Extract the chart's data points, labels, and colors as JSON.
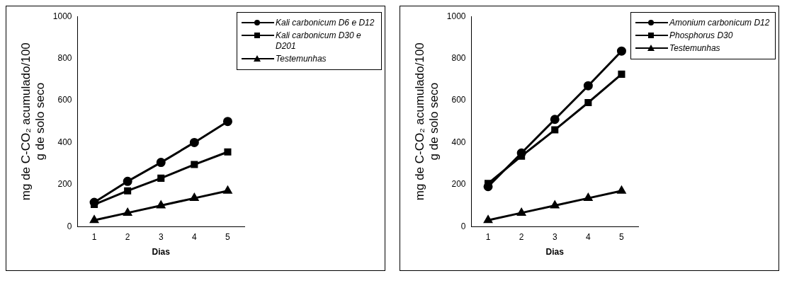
{
  "chart_data": [
    {
      "type": "line",
      "xlabel": "Dias",
      "ylabel": "mg de C-CO₂ acumulado/100 g de solo seco",
      "categories": [
        "1",
        "2",
        "3",
        "4",
        "5"
      ],
      "ylim": [
        0,
        1000
      ],
      "yticks": [
        0,
        200,
        400,
        600,
        800,
        1000
      ],
      "legend": "top right",
      "grid": false,
      "series": [
        {
          "name": "Kali carbonicum D6 e D12",
          "color": "#000000",
          "marker": "circle",
          "values": [
            115,
            215,
            305,
            400,
            500
          ]
        },
        {
          "name": "Kali carbonicum D30 e D201",
          "color": "#000000",
          "marker": "square",
          "values": [
            105,
            170,
            230,
            295,
            355
          ]
        },
        {
          "name": "Testemunhas",
          "color": "#000000",
          "marker": "triangle",
          "values": [
            30,
            65,
            100,
            135,
            170
          ]
        }
      ]
    },
    {
      "type": "line",
      "xlabel": "Dias",
      "ylabel": "mg de C-CO₂ acumulado/100 g de solo seco",
      "categories": [
        "1",
        "2",
        "3",
        "4",
        "5"
      ],
      "ylim": [
        0,
        1000
      ],
      "yticks": [
        0,
        200,
        400,
        600,
        800,
        1000
      ],
      "legend": "top right",
      "grid": false,
      "series": [
        {
          "name": "Amonium carbonicum D12",
          "color": "#000000",
          "marker": "circle",
          "values": [
            190,
            350,
            510,
            670,
            835
          ]
        },
        {
          "name": "Phosphorus D30",
          "color": "#000000",
          "marker": "square",
          "values": [
            205,
            335,
            460,
            590,
            725
          ]
        },
        {
          "name": "Testemunhas",
          "color": "#000000",
          "marker": "triangle",
          "values": [
            30,
            65,
            100,
            135,
            170
          ]
        }
      ]
    }
  ]
}
